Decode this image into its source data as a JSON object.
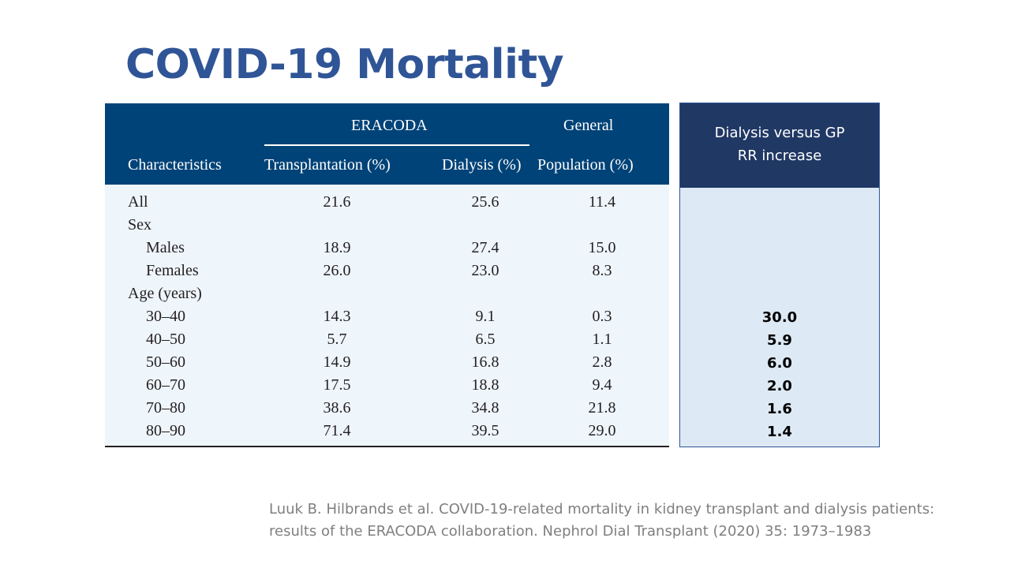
{
  "title": "COVID-19 Mortality",
  "table": {
    "group_header": "ERACODA",
    "general_header": "General",
    "columns": [
      "Characteristics",
      "Transplantation (%)",
      "Dialysis (%)",
      "Population (%)"
    ],
    "rows": [
      {
        "label": "All",
        "indent": false,
        "tx": "21.6",
        "dx": "25.6",
        "gp": "11.4"
      },
      {
        "label": "Sex",
        "indent": false,
        "tx": "",
        "dx": "",
        "gp": ""
      },
      {
        "label": "Males",
        "indent": true,
        "tx": "18.9",
        "dx": "27.4",
        "gp": "15.0"
      },
      {
        "label": "Females",
        "indent": true,
        "tx": "26.0",
        "dx": "23.0",
        "gp": "8.3"
      },
      {
        "label": "Age (years)",
        "indent": false,
        "tx": "",
        "dx": "",
        "gp": ""
      },
      {
        "label": "30–40",
        "indent": true,
        "tx": "14.3",
        "dx": "9.1",
        "gp": "0.3"
      },
      {
        "label": "40–50",
        "indent": true,
        "tx": "5.7",
        "dx": "6.5",
        "gp": "1.1"
      },
      {
        "label": "50–60",
        "indent": true,
        "tx": "14.9",
        "dx": "16.8",
        "gp": "2.8"
      },
      {
        "label": "60–70",
        "indent": true,
        "tx": "17.5",
        "dx": "18.8",
        "gp": "9.4"
      },
      {
        "label": "70–80",
        "indent": true,
        "tx": "38.6",
        "dx": "34.8",
        "gp": "21.8"
      },
      {
        "label": "80–90",
        "indent": true,
        "tx": "71.4",
        "dx": "39.5",
        "gp": "29.0"
      }
    ]
  },
  "rr_panel": {
    "header_line1": "Dialysis versus GP",
    "header_line2": "RR increase",
    "values": [
      "30.0",
      "5.9",
      "6.0",
      "2.0",
      "1.6",
      "1.4"
    ]
  },
  "citation": {
    "line1": "Luuk B. Hilbrands et al. COVID-19-related mortality in kidney transplant and dialysis patients:",
    "line2": "results of the ERACODA collaboration. Nephrol Dial Transplant (2020) 35: 1973–1983"
  },
  "colors": {
    "title": "#2f5597",
    "table_header_bg": "#004378",
    "table_body_bg": "#eef5fb",
    "rr_header_bg": "#203864",
    "rr_body_bg": "#dde9f5",
    "citation": "#7f7f7f"
  }
}
